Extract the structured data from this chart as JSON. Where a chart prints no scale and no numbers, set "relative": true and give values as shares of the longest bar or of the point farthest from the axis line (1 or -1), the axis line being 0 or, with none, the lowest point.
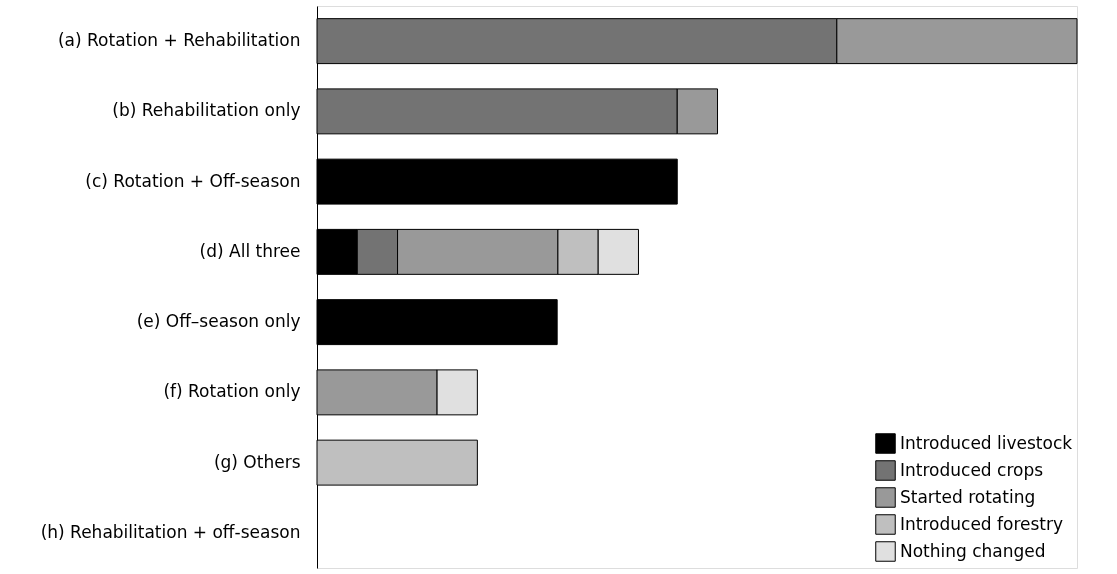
{
  "chart_data": {
    "type": "bar",
    "orientation": "horizontal",
    "stacked": true,
    "relative": true,
    "legend": "bottom right",
    "categories": [
      "(a) Rotation + Rehabilitation",
      "(b) Rehabilitation only",
      "(c) Rotation + Off-season",
      "(d) All three",
      "(e) Off–season only",
      "(f) Rotation only",
      "(g) Others",
      "(h) Rehabilitation + off-season"
    ],
    "series": [
      {
        "name": "Introduced livestock",
        "color": "#000000",
        "values": [
          null,
          null,
          0.474,
          0.053,
          0.316,
          null,
          null,
          null
        ]
      },
      {
        "name": "Introduced crops",
        "color": "#737373",
        "values": [
          0.684,
          0.474,
          null,
          0.053,
          null,
          null,
          null,
          null
        ]
      },
      {
        "name": "Started rotating",
        "color": "#999999",
        "values": [
          0.316,
          0.053,
          null,
          0.211,
          null,
          0.158,
          null,
          null
        ]
      },
      {
        "name": "Introduced forestry",
        "color": "#bfbfbf",
        "values": [
          null,
          null,
          null,
          0.053,
          null,
          null,
          0.211,
          null
        ]
      },
      {
        "name": "Nothing changed",
        "color": "#e0e0e0",
        "values": [
          null,
          null,
          null,
          0.053,
          null,
          0.053,
          null,
          null
        ]
      }
    ]
  }
}
